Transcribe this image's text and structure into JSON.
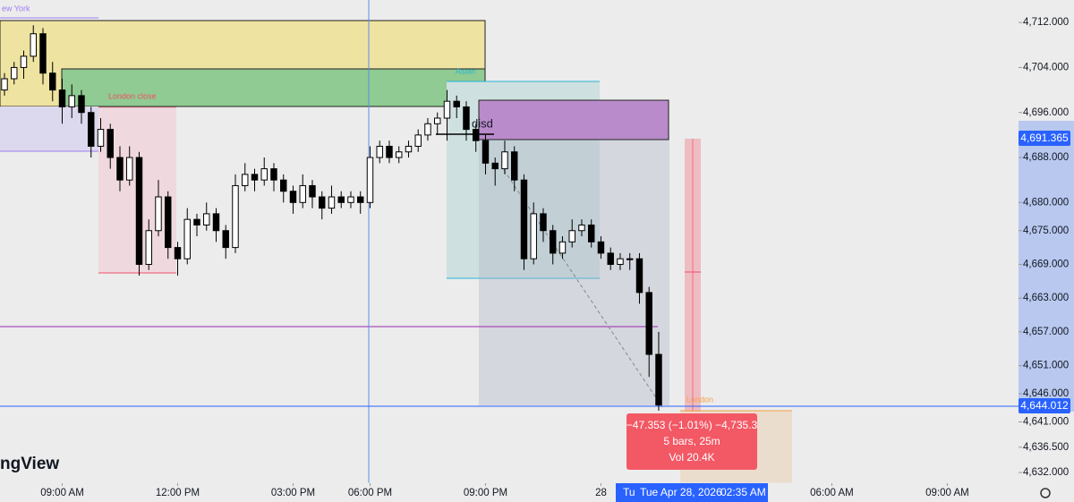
{
  "chart_data": {
    "type": "candlestick",
    "up_color": "#ffffff",
    "down_color": "#000000",
    "wick_color": "#000000",
    "candles": [
      [
        4700,
        4703,
        4699,
        4702
      ],
      [
        4702,
        4705,
        4701,
        4704
      ],
      [
        4704,
        4707,
        4702,
        4706
      ],
      [
        4706,
        4711.5,
        4705,
        4710
      ],
      [
        4710,
        4711,
        4701,
        4703
      ],
      [
        4703,
        4705,
        4698,
        4700
      ],
      [
        4700,
        4702,
        4694,
        4697
      ],
      [
        4697,
        4701,
        4695,
        4699
      ],
      [
        4699,
        4700,
        4694,
        4696
      ],
      [
        4696,
        4697,
        4688,
        4690
      ],
      [
        4690,
        4695,
        4689,
        4693
      ],
      [
        4693,
        4694,
        4686,
        4688
      ],
      [
        4688,
        4690,
        4682,
        4684
      ],
      [
        4684,
        4690,
        4683,
        4688
      ],
      [
        4688,
        4689,
        4667,
        4669
      ],
      [
        4669,
        4677,
        4668,
        4675
      ],
      [
        4675,
        4684,
        4674,
        4681
      ],
      [
        4681,
        4682,
        4670,
        4672
      ],
      [
        4672,
        4673,
        4667,
        4670
      ],
      [
        4670,
        4679,
        4669,
        4677
      ],
      [
        4677,
        4678,
        4674,
        4676
      ],
      [
        4676,
        4680,
        4675,
        4678
      ],
      [
        4678,
        4679,
        4673,
        4675
      ],
      [
        4675,
        4676,
        4670,
        4672
      ],
      [
        4672,
        4685,
        4671,
        4683
      ],
      [
        4683,
        4687,
        4682,
        4685
      ],
      [
        4685,
        4686,
        4682,
        4684
      ],
      [
        4684,
        4688,
        4683,
        4686
      ],
      [
        4686,
        4687,
        4682,
        4684
      ],
      [
        4684,
        4685,
        4680,
        4682
      ],
      [
        4682,
        4683,
        4678,
        4680
      ],
      [
        4680,
        4685,
        4679,
        4683
      ],
      [
        4683,
        4684,
        4679,
        4681
      ],
      [
        4681,
        4682,
        4677,
        4679
      ],
      [
        4679,
        4683,
        4678,
        4681
      ],
      [
        4681,
        4682,
        4679,
        4680
      ],
      [
        4680,
        4682,
        4679,
        4681
      ],
      [
        4681,
        4682,
        4678,
        4680
      ],
      [
        4680,
        4690,
        4679,
        4688
      ],
      [
        4688,
        4691,
        4687,
        4690
      ],
      [
        4690,
        4691,
        4687,
        4688
      ],
      [
        4688,
        4690,
        4687,
        4689
      ],
      [
        4689,
        4691,
        4688,
        4690
      ],
      [
        4690,
        4693,
        4689,
        4692
      ],
      [
        4692,
        4695,
        4691,
        4694
      ],
      [
        4694,
        4696,
        4692,
        4695
      ],
      [
        4695,
        4700,
        4691,
        4698
      ],
      [
        4698,
        4699,
        4695,
        4697
      ],
      [
        4697,
        4698,
        4691,
        4693
      ],
      [
        4693,
        4694,
        4689,
        4691
      ],
      [
        4691,
        4692,
        4685,
        4687
      ],
      [
        4687,
        4688,
        4683,
        4686
      ],
      [
        4686,
        4691,
        4685,
        4689
      ],
      [
        4689,
        4690,
        4682,
        4684
      ],
      [
        4684,
        4685,
        4668,
        4670
      ],
      [
        4670,
        4680,
        4669,
        4678
      ],
      [
        4678,
        4679,
        4673,
        4675
      ],
      [
        4675,
        4676,
        4669,
        4671
      ],
      [
        4671,
        4674,
        4670,
        4673
      ],
      [
        4673,
        4677,
        4672,
        4675
      ],
      [
        4675,
        4677,
        4674,
        4676
      ],
      [
        4676,
        4677,
        4672,
        4673
      ],
      [
        4673,
        4674,
        4670,
        4671
      ],
      [
        4671,
        4672,
        4668,
        4669
      ],
      [
        4669,
        4671,
        4668,
        4670
      ],
      [
        4670,
        4671,
        4668,
        4670
      ],
      [
        4670,
        4671,
        4662,
        4664
      ],
      [
        4664,
        4665,
        4649,
        4653
      ],
      [
        4653,
        4657,
        4643,
        4644
      ]
    ],
    "xlim": [
      -0.465,
      105.4
    ],
    "xticks": [
      {
        "value": 6,
        "label": "09:00 AM"
      },
      {
        "value": 18,
        "label": "12:00 PM"
      },
      {
        "value": 30,
        "label": "03:00 PM"
      },
      {
        "value": 38,
        "label": "06:00 PM"
      },
      {
        "value": 50,
        "label": "09:00 PM"
      },
      {
        "value": 62,
        "label": "28"
      },
      {
        "value": 86,
        "label": "06:00 AM"
      },
      {
        "value": 98,
        "label": "09:00 AM"
      }
    ],
    "ylim": [
      4630.1,
      4716
    ],
    "yticks": [
      {
        "value": 4712,
        "label": "4,712.000"
      },
      {
        "value": 4704,
        "label": "4,704.000"
      },
      {
        "value": 4696,
        "label": "4,696.000"
      },
      {
        "value": 4688,
        "label": "4,688.000"
      },
      {
        "value": 4680,
        "label": "4,680.000"
      },
      {
        "value": 4675,
        "label": "4,675.000"
      },
      {
        "value": 4669,
        "label": "4,669.000"
      },
      {
        "value": 4663,
        "label": "4,663.000"
      },
      {
        "value": 4657,
        "label": "4,657.000"
      },
      {
        "value": 4651,
        "label": "4,651.000"
      },
      {
        "value": 4646,
        "label": "4,646.000"
      },
      {
        "value": 4641,
        "label": "4,641.000"
      },
      {
        "value": 4636.5,
        "label": "4,636.500"
      },
      {
        "value": 4632,
        "label": "4,632.000"
      }
    ],
    "annotations": {
      "new_york": "ew York",
      "london_close": "London close",
      "asian": "Asian",
      "disd": "disd",
      "london": "London",
      "current_price": "4,691.365",
      "line_price": "4,644.012",
      "measure_change": "−47.353 (−1.01%) −4,735.3",
      "measure_bars": "5 bars, 25m",
      "measure_volume": "Vol 20.4K",
      "watermark": "ngView",
      "crosshair_day": "Tu",
      "crosshair_date": "Tue Apr 28, 2026",
      "crosshair_clock": "02:35 AM"
    }
  }
}
